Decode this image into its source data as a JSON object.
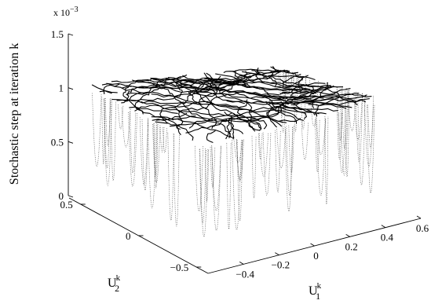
{
  "chart_data": {
    "type": "surface-3d",
    "title": "",
    "zlabel": "Stochastic step at iteration k",
    "xlabel": {
      "main": "U",
      "sub": "1",
      "sup": "k"
    },
    "ylabel": {
      "main": "U",
      "sub": "2",
      "sup": "k"
    },
    "z_exponent_label": "x 10",
    "z_exponent_power": "−3",
    "xlim": [
      -0.6,
      0.6
    ],
    "ylim": [
      -0.6,
      0.6
    ],
    "zlim": [
      0,
      0.0015
    ],
    "x_ticks": [
      -0.4,
      -0.2,
      0,
      0.2,
      0.4,
      0.6
    ],
    "x_tick_labels": [
      "−0.4",
      "−0.2",
      "0",
      "0.2",
      "0.4",
      "0.6"
    ],
    "y_ticks": [
      -0.5,
      0,
      0.5
    ],
    "y_tick_labels": [
      "−0.5",
      "0",
      "0.5"
    ],
    "z_ticks": [
      0,
      0.0005,
      0.001,
      0.0015
    ],
    "z_tick_labels": [
      "0",
      "0.5",
      "1",
      "1.5"
    ],
    "grid": false,
    "surface": {
      "plateau_level": 0.001,
      "plateau_variation": 8e-05,
      "dip_min_level": 0.0002,
      "description_color": "#000000"
    }
  }
}
